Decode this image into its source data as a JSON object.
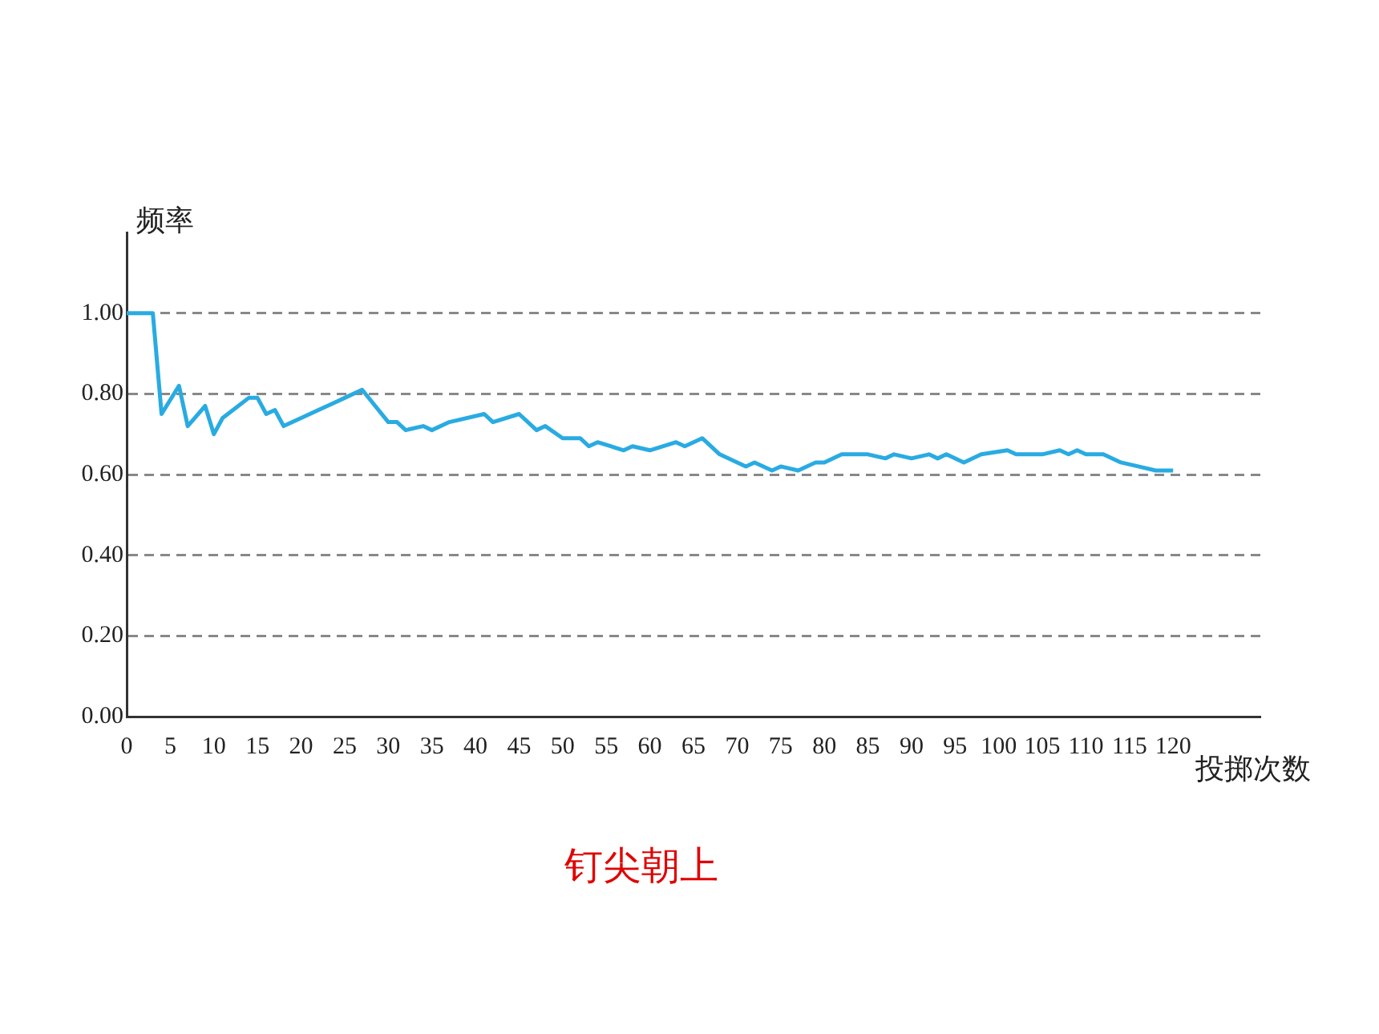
{
  "chart_data": {
    "type": "line",
    "xlabel": "投掷次数",
    "ylabel": "频率",
    "annotations": [
      "钉尖朝上"
    ],
    "x": [
      0,
      3,
      4,
      6,
      7,
      9,
      10,
      11,
      14,
      15,
      16,
      17,
      18,
      20,
      24,
      25,
      27,
      30,
      31,
      32,
      34,
      35,
      37,
      41,
      42,
      45,
      47,
      48,
      50,
      52,
      53,
      54,
      57,
      58,
      60,
      63,
      64,
      66,
      68,
      71,
      72,
      74,
      75,
      77,
      79,
      80,
      82,
      85,
      87,
      88,
      90,
      92,
      93,
      94,
      96,
      98,
      101,
      102,
      105,
      107,
      108,
      109,
      110,
      112,
      114,
      116,
      118,
      120
    ],
    "series": [
      {
        "color": "#29abe2",
        "values": [
          1.0,
          1.0,
          0.75,
          0.82,
          0.72,
          0.77,
          0.7,
          0.74,
          0.79,
          0.79,
          0.75,
          0.76,
          0.72,
          0.74,
          0.78,
          0.79,
          0.81,
          0.73,
          0.73,
          0.71,
          0.72,
          0.71,
          0.73,
          0.75,
          0.73,
          0.75,
          0.71,
          0.72,
          0.69,
          0.69,
          0.67,
          0.68,
          0.66,
          0.67,
          0.66,
          0.68,
          0.67,
          0.69,
          0.65,
          0.62,
          0.63,
          0.61,
          0.62,
          0.61,
          0.63,
          0.63,
          0.65,
          0.65,
          0.64,
          0.65,
          0.64,
          0.65,
          0.64,
          0.65,
          0.63,
          0.65,
          0.66,
          0.65,
          0.65,
          0.66,
          0.65,
          0.66,
          0.65,
          0.65,
          0.63,
          0.62,
          0.61,
          0.61
        ]
      }
    ],
    "xlim": [
      0,
      130
    ],
    "xticks": [
      0,
      5,
      10,
      15,
      20,
      25,
      30,
      35,
      40,
      45,
      50,
      55,
      60,
      65,
      70,
      75,
      80,
      85,
      90,
      95,
      100,
      105,
      110,
      115,
      120
    ],
    "ylim": [
      0,
      1.2
    ],
    "yticks": [
      {
        "value": 0,
        "label": "0.00"
      },
      {
        "value": 0.2,
        "label": "0.20"
      },
      {
        "value": 0.4,
        "label": "0.40"
      },
      {
        "value": 0.6,
        "label": "0.60"
      },
      {
        "value": 0.8,
        "label": "0.80"
      },
      {
        "value": 1,
        "label": "1.00"
      }
    ],
    "grid": "y",
    "marker": "none",
    "line_style": "solid"
  }
}
